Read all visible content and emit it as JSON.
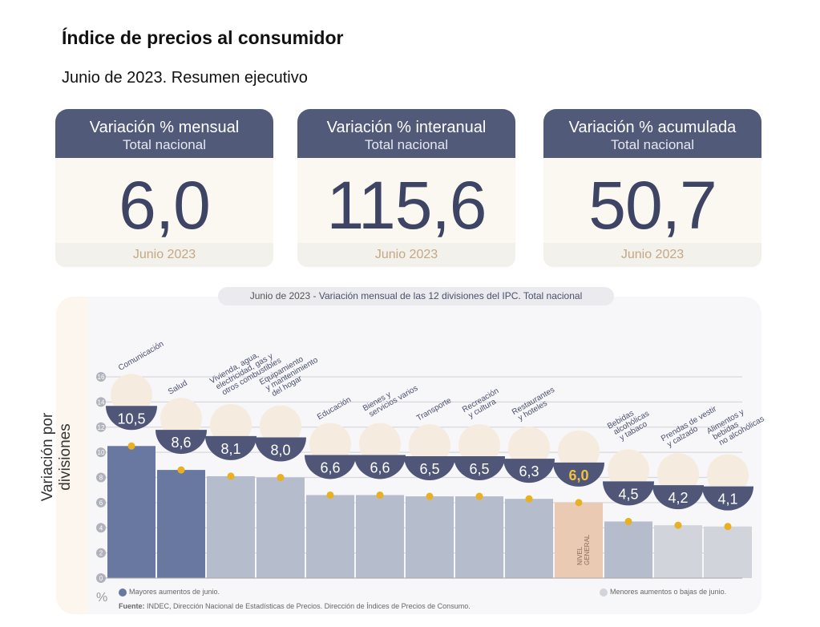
{
  "header": {
    "title": "Índice de precios al consumidor",
    "subtitle": "Junio de 2023. Resumen ejecutivo"
  },
  "cards": [
    {
      "title": "Variación % mensual",
      "subtitle": "Total nacional",
      "value": "6,0",
      "period": "Junio 2023"
    },
    {
      "title": "Variación % interanual",
      "subtitle": "Total nacional",
      "value": "115,6",
      "period": "Junio 2023"
    },
    {
      "title": "Variación % acumulada",
      "subtitle": "Total nacional",
      "value": "50,7",
      "period": "Junio 2023"
    }
  ],
  "chart_data": {
    "type": "bar",
    "title_prefix": "Junio de 2023",
    "title": "Variación mensual de las 12 divisiones del IPC. Total nacional",
    "ylabel": "Variación por divisiones",
    "yunit": "%",
    "ylim": [
      0,
      16
    ],
    "yticks": [
      "0",
      "2",
      "4",
      "6",
      "8",
      "10",
      "12",
      "14",
      "16"
    ],
    "grid": true,
    "categories": [
      [
        "Comunicación"
      ],
      [
        "Salud"
      ],
      [
        "Vivienda, agua,",
        "electricidad, gas y",
        "otros combustibles"
      ],
      [
        "Equipamiento",
        "y mantenimiento",
        "del hogar"
      ],
      [
        "Educación"
      ],
      [
        "Bienes y",
        "servicios varios"
      ],
      [
        "Transporte"
      ],
      [
        "Recreación",
        "y cultura"
      ],
      [
        "Restaurantes",
        "y hoteles"
      ],
      [
        "NIVEL",
        "GENERAL"
      ],
      [
        "Bebidas",
        "alcohólicas",
        "y tabaco"
      ],
      [
        "Prendas de vestir",
        "y calzado"
      ],
      [
        "Alimentos y",
        "bebidas",
        "no alcohólicas"
      ]
    ],
    "values": [
      10.5,
      8.6,
      8.1,
      8.0,
      6.6,
      6.6,
      6.5,
      6.5,
      6.3,
      6.0,
      4.5,
      4.2,
      4.1
    ],
    "value_labels": [
      "10,5",
      "8,6",
      "8,1",
      "8,0",
      "6,6",
      "6,6",
      "6,5",
      "6,5",
      "6,3",
      "6,0",
      "4,5",
      "4,2",
      "4,1"
    ],
    "groups": [
      "high",
      "high",
      "mid",
      "mid",
      "mid",
      "mid",
      "mid",
      "mid",
      "mid",
      "general",
      "mid",
      "low",
      "low"
    ],
    "colors": {
      "high": "#6878a0",
      "mid": "#b5bccb",
      "general": "#ebcab4",
      "low": "#d2d4db",
      "badge": "#4f5678",
      "dot": "#e8b022",
      "general_label": "#f0c040"
    },
    "legend": {
      "high": "Mayores aumentos de junio.",
      "low": "Menores aumentos o bajas de junio."
    },
    "source_label": "Fuente:",
    "source": "INDEC, Dirección Nacional de Estadísticas de Precios. Dirección de Índices de Precios de Consumo."
  }
}
